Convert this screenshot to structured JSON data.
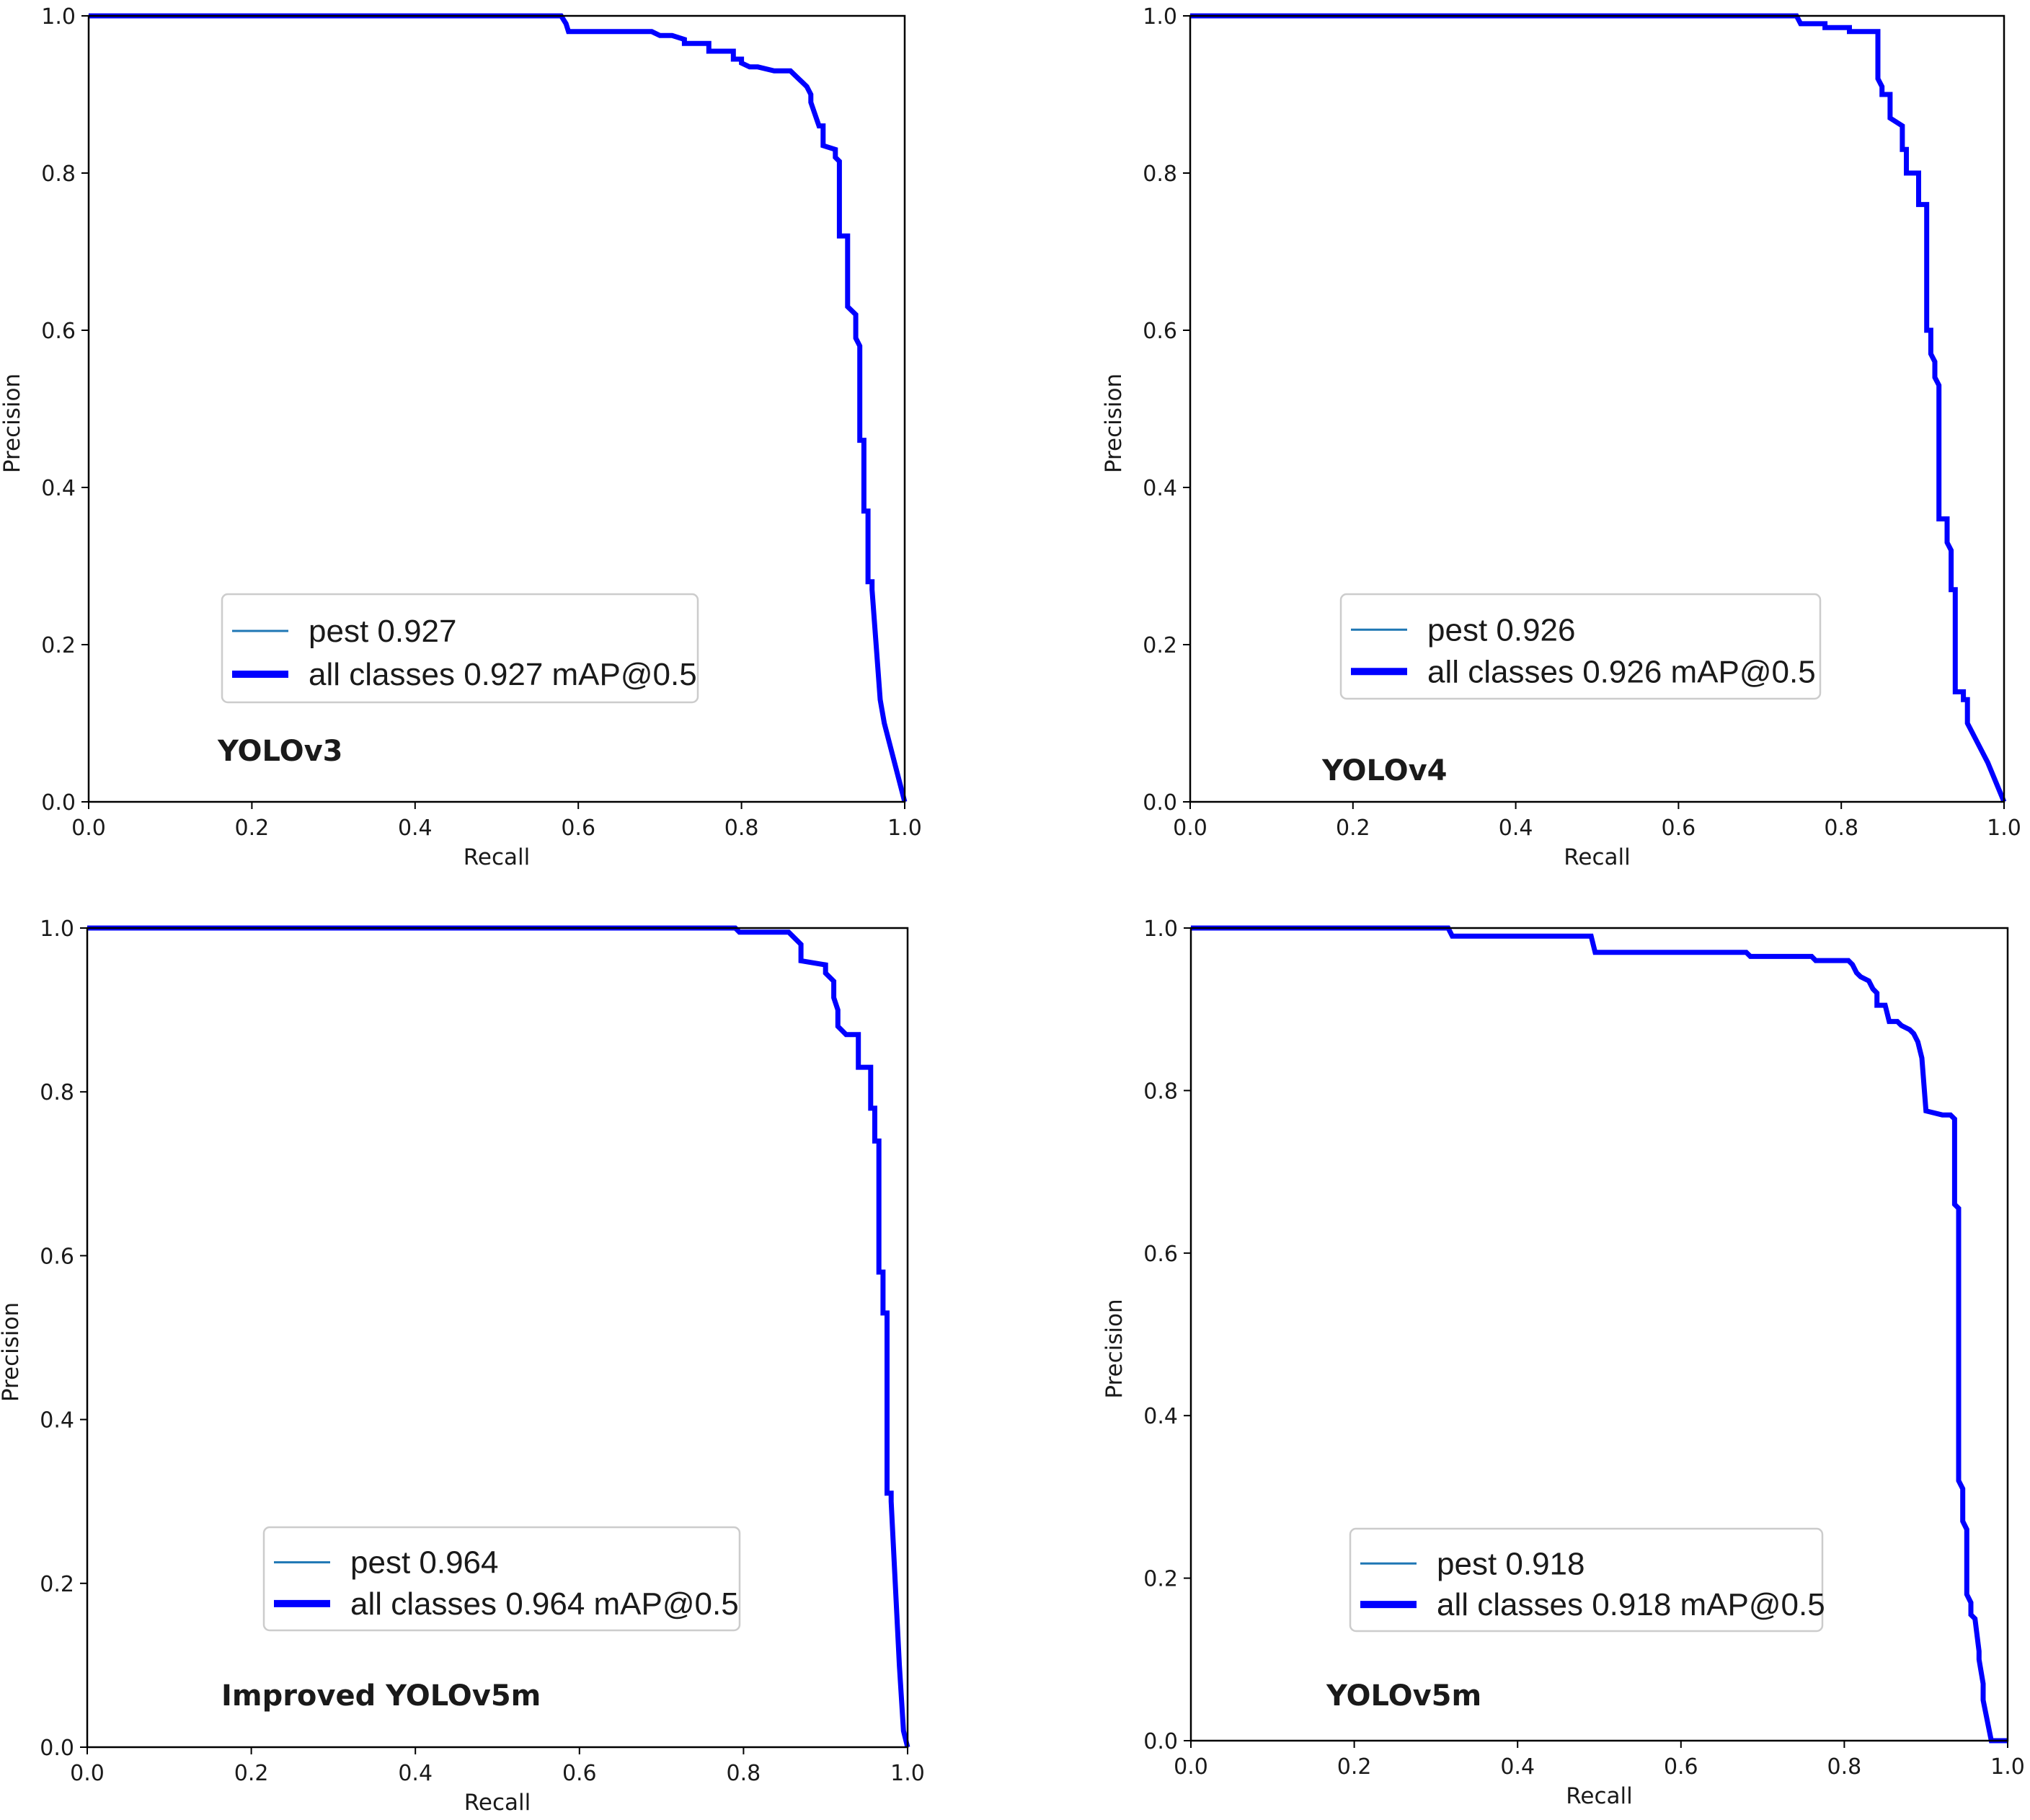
{
  "page": {
    "background": "#ffffff"
  },
  "colors": {
    "curve": "#0000ff",
    "pest_line": "#1f77b4",
    "frame": "#000000",
    "legend_border": "#cccccc"
  },
  "chart_data": [
    {
      "type": "line",
      "model": "YOLOv3",
      "xlabel": "Recall",
      "ylabel": "Precision",
      "xlim": [
        0,
        1
      ],
      "ylim": [
        0,
        1
      ],
      "x_ticks": [
        "0.0",
        "0.2",
        "0.4",
        "0.6",
        "0.8",
        "1.0"
      ],
      "y_ticks": [
        "0.0",
        "0.2",
        "0.4",
        "0.6",
        "0.8",
        "1.0"
      ],
      "grid": false,
      "legend": {
        "position": "lower-center",
        "entries": [
          "pest 0.927",
          "all classes 0.927 mAP@0.5"
        ]
      },
      "series": [
        {
          "name": "all classes 0.927 mAP@0.5",
          "x": [
            0.0,
            0.579,
            0.585,
            0.588,
            0.69,
            0.7,
            0.715,
            0.73,
            0.73,
            0.76,
            0.76,
            0.79,
            0.79,
            0.8,
            0.8,
            0.81,
            0.82,
            0.84,
            0.84,
            0.845,
            0.85,
            0.86,
            0.865,
            0.87,
            0.875,
            0.88,
            0.885,
            0.885,
            0.895,
            0.9,
            0.9,
            0.915,
            0.915,
            0.92,
            0.92,
            0.93,
            0.93,
            0.94,
            0.94,
            0.945,
            0.945,
            0.95,
            0.95,
            0.955,
            0.955,
            0.96,
            0.96,
            0.97,
            0.975,
            1.0
          ],
          "y": [
            1.0,
            1.0,
            0.99,
            0.98,
            0.98,
            0.975,
            0.975,
            0.97,
            0.965,
            0.965,
            0.955,
            0.955,
            0.945,
            0.945,
            0.94,
            0.935,
            0.935,
            0.93,
            0.93,
            0.93,
            0.93,
            0.93,
            0.925,
            0.92,
            0.915,
            0.91,
            0.9,
            0.89,
            0.86,
            0.86,
            0.835,
            0.83,
            0.82,
            0.815,
            0.72,
            0.72,
            0.63,
            0.62,
            0.59,
            0.58,
            0.46,
            0.46,
            0.37,
            0.37,
            0.28,
            0.28,
            0.27,
            0.13,
            0.1,
            0.0
          ]
        },
        {
          "name": "pest 0.927",
          "x": [],
          "y": []
        }
      ]
    },
    {
      "type": "line",
      "model": "YOLOv4",
      "xlabel": "Recall",
      "ylabel": "Precision",
      "xlim": [
        0,
        1
      ],
      "ylim": [
        0,
        1
      ],
      "x_ticks": [
        "0.0",
        "0.2",
        "0.4",
        "0.6",
        "0.8",
        "1.0"
      ],
      "y_ticks": [
        "0.0",
        "0.2",
        "0.4",
        "0.6",
        "0.8",
        "1.0"
      ],
      "grid": false,
      "legend": {
        "position": "lower-center",
        "entries": [
          "pest 0.926",
          "all classes 0.926 mAP@0.5"
        ]
      },
      "series": [
        {
          "name": "all classes 0.926 mAP@0.5",
          "x": [
            0.0,
            0.745,
            0.75,
            0.78,
            0.78,
            0.81,
            0.81,
            0.845,
            0.845,
            0.85,
            0.85,
            0.86,
            0.86,
            0.875,
            0.875,
            0.88,
            0.88,
            0.895,
            0.895,
            0.905,
            0.905,
            0.91,
            0.91,
            0.915,
            0.915,
            0.92,
            0.92,
            0.93,
            0.93,
            0.935,
            0.935,
            0.94,
            0.94,
            0.95,
            0.95,
            0.955,
            0.955,
            0.965,
            0.98,
            1.0
          ],
          "y": [
            1.0,
            1.0,
            0.99,
            0.99,
            0.985,
            0.985,
            0.98,
            0.98,
            0.92,
            0.91,
            0.9,
            0.9,
            0.87,
            0.86,
            0.83,
            0.83,
            0.8,
            0.8,
            0.76,
            0.76,
            0.6,
            0.6,
            0.57,
            0.56,
            0.54,
            0.53,
            0.36,
            0.36,
            0.33,
            0.32,
            0.27,
            0.27,
            0.14,
            0.14,
            0.13,
            0.13,
            0.1,
            0.08,
            0.05,
            0.0
          ]
        },
        {
          "name": "pest 0.926",
          "x": [],
          "y": []
        }
      ]
    },
    {
      "type": "line",
      "model": "Improved YOLOv5m",
      "xlabel": "Recall",
      "ylabel": "Precision",
      "xlim": [
        0,
        1
      ],
      "ylim": [
        0,
        1
      ],
      "x_ticks": [
        "0.0",
        "0.2",
        "0.4",
        "0.6",
        "0.8",
        "1.0"
      ],
      "y_ticks": [
        "0.0",
        "0.2",
        "0.4",
        "0.6",
        "0.8",
        "1.0"
      ],
      "grid": false,
      "legend": {
        "position": "lower-center",
        "entries": [
          "pest 0.964",
          "all classes 0.964 mAP@0.5"
        ]
      },
      "series": [
        {
          "name": "all classes 0.964 mAP@0.5",
          "x": [
            0.0,
            0.79,
            0.795,
            0.855,
            0.86,
            0.87,
            0.87,
            0.9,
            0.9,
            0.91,
            0.91,
            0.915,
            0.915,
            0.925,
            0.925,
            0.94,
            0.94,
            0.955,
            0.955,
            0.96,
            0.96,
            0.965,
            0.965,
            0.97,
            0.97,
            0.975,
            0.975,
            0.98,
            0.98,
            0.985,
            0.99,
            0.995,
            1.0
          ],
          "y": [
            1.0,
            1.0,
            0.995,
            0.995,
            0.99,
            0.98,
            0.96,
            0.955,
            0.945,
            0.935,
            0.915,
            0.9,
            0.88,
            0.87,
            0.87,
            0.87,
            0.83,
            0.83,
            0.78,
            0.78,
            0.74,
            0.74,
            0.58,
            0.58,
            0.53,
            0.53,
            0.31,
            0.31,
            0.3,
            0.2,
            0.1,
            0.02,
            0.0
          ]
        },
        {
          "name": "pest 0.964",
          "x": [],
          "y": []
        }
      ]
    },
    {
      "type": "line",
      "model": "YOLOv5m",
      "xlabel": "Recall",
      "ylabel": "Precision",
      "xlim": [
        0,
        1
      ],
      "ylim": [
        0,
        1
      ],
      "x_ticks": [
        "0.0",
        "0.2",
        "0.4",
        "0.6",
        "0.8",
        "1.0"
      ],
      "y_ticks": [
        "0.0",
        "0.2",
        "0.4",
        "0.6",
        "0.8",
        "1.0"
      ],
      "grid": false,
      "legend": {
        "position": "lower-center",
        "entries": [
          "pest 0.918",
          "all classes 0.918 mAP@0.5"
        ]
      },
      "series": [
        {
          "name": "all classes 0.918 mAP@0.5",
          "x": [
            0.0,
            0.315,
            0.32,
            0.49,
            0.495,
            0.68,
            0.685,
            0.76,
            0.765,
            0.805,
            0.81,
            0.815,
            0.82,
            0.83,
            0.835,
            0.84,
            0.84,
            0.85,
            0.855,
            0.865,
            0.87,
            0.88,
            0.885,
            0.89,
            0.895,
            0.9,
            0.92,
            0.93,
            0.935,
            0.935,
            0.94,
            0.94,
            0.945,
            0.945,
            0.95,
            0.95,
            0.955,
            0.955,
            0.96,
            0.965,
            0.965,
            0.97,
            0.97,
            0.98,
            0.99,
            1.0
          ],
          "y": [
            1.0,
            1.0,
            0.99,
            0.99,
            0.97,
            0.97,
            0.965,
            0.965,
            0.96,
            0.96,
            0.955,
            0.945,
            0.94,
            0.935,
            0.925,
            0.92,
            0.905,
            0.905,
            0.885,
            0.885,
            0.88,
            0.875,
            0.87,
            0.86,
            0.84,
            0.775,
            0.77,
            0.77,
            0.765,
            0.66,
            0.655,
            0.32,
            0.31,
            0.27,
            0.26,
            0.18,
            0.17,
            0.155,
            0.15,
            0.11,
            0.1,
            0.07,
            0.05,
            0.0,
            0.0,
            0.0
          ]
        },
        {
          "name": "pest 0.918",
          "x": [],
          "y": []
        }
      ]
    }
  ]
}
